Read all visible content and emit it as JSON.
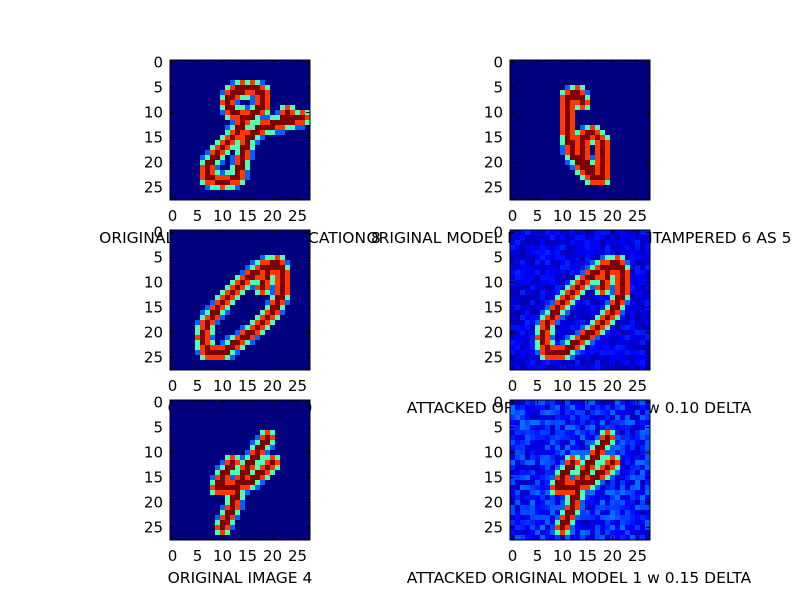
{
  "figure": {
    "background": "#ffffff",
    "colormap": "jet",
    "colormap_stops": [
      "#00007f",
      "#0000ff",
      "#007fff",
      "#00ffff",
      "#7fff7f",
      "#ffff00",
      "#ff7f00",
      "#ff0000",
      "#7f0000"
    ]
  },
  "chart_data": [
    {
      "type": "heatmap",
      "image_size": [
        28,
        28
      ],
      "xticks": [
        0,
        5,
        10,
        15,
        20,
        25
      ],
      "yticks": [
        0,
        5,
        10,
        15,
        20,
        25
      ],
      "xlim": [
        -0.5,
        27.5
      ],
      "ylim": [
        27.5,
        -0.5
      ],
      "grid": false,
      "caption": "ORIGINAL MODEL CLASSIFICATION 8",
      "depicted_digit": "8",
      "strokes": [
        [
          [
            13,
            6
          ],
          [
            16,
            5
          ],
          [
            18,
            6
          ],
          [
            18,
            9
          ],
          [
            15,
            11
          ],
          [
            12,
            10
          ],
          [
            11,
            8
          ],
          [
            12,
            6
          ],
          [
            14,
            5
          ]
        ],
        [
          [
            15,
            11
          ],
          [
            12,
            15
          ],
          [
            9,
            18
          ],
          [
            7,
            21
          ],
          [
            7,
            23
          ],
          [
            10,
            24
          ],
          [
            13,
            23
          ],
          [
            14,
            19
          ],
          [
            15,
            15
          ],
          [
            18,
            13
          ],
          [
            22,
            12
          ],
          [
            26,
            11
          ]
        ],
        [
          [
            22,
            12
          ],
          [
            23,
            10
          ]
        ]
      ],
      "noise": 0
    },
    {
      "type": "heatmap",
      "image_size": [
        28,
        28
      ],
      "xticks": [
        0,
        5,
        10,
        15,
        20,
        25
      ],
      "yticks": [
        0,
        5,
        10,
        15,
        20,
        25
      ],
      "xlim": [
        -0.5,
        27.5
      ],
      "ylim": [
        27.5,
        -0.5
      ],
      "grid": false,
      "caption": "ORIGINAL MODEL MISCLASSIFIED UNTAMPERED 6 AS 5",
      "depicted_digit": "6",
      "strokes": [
        [
          [
            13,
            6
          ],
          [
            11,
            7
          ],
          [
            11,
            10
          ],
          [
            11,
            14
          ],
          [
            12,
            18
          ],
          [
            14,
            21
          ],
          [
            16,
            23
          ],
          [
            18,
            23
          ],
          [
            18,
            20
          ],
          [
            18,
            16
          ],
          [
            16,
            14
          ],
          [
            14,
            15
          ],
          [
            14,
            19
          ],
          [
            16,
            22
          ]
        ],
        [
          [
            13,
            6
          ],
          [
            14,
            8
          ]
        ]
      ],
      "noise": 0
    },
    {
      "type": "heatmap",
      "image_size": [
        28,
        28
      ],
      "xticks": [
        0,
        5,
        10,
        15,
        20,
        25
      ],
      "yticks": [
        0,
        5,
        10,
        15,
        20,
        25
      ],
      "xlim": [
        -0.5,
        27.5
      ],
      "ylim": [
        27.5,
        -0.5
      ],
      "grid": false,
      "caption": "ORIGINAL IMAGE 0",
      "depicted_digit": "0",
      "strokes": [
        [
          [
            21,
            6
          ],
          [
            18,
            7
          ],
          [
            14,
            10
          ],
          [
            10,
            14
          ],
          [
            7,
            18
          ],
          [
            6,
            21
          ],
          [
            7,
            24
          ],
          [
            10,
            24
          ],
          [
            13,
            22
          ],
          [
            17,
            19
          ],
          [
            20,
            16
          ],
          [
            22,
            12
          ],
          [
            22,
            8
          ],
          [
            21,
            6
          ],
          [
            19,
            8
          ],
          [
            18,
            11
          ]
        ]
      ],
      "noise": 0
    },
    {
      "type": "heatmap",
      "image_size": [
        28,
        28
      ],
      "xticks": [
        0,
        5,
        10,
        15,
        20,
        25
      ],
      "yticks": [
        0,
        5,
        10,
        15,
        20,
        25
      ],
      "xlim": [
        -0.5,
        27.5
      ],
      "ylim": [
        27.5,
        -0.5
      ],
      "grid": false,
      "caption": "ATTACKED ORIGINAL MODEL 2 w 0.10 DELTA",
      "depicted_digit": "0",
      "strokes": [
        [
          [
            21,
            6
          ],
          [
            18,
            7
          ],
          [
            14,
            10
          ],
          [
            10,
            14
          ],
          [
            7,
            18
          ],
          [
            6,
            21
          ],
          [
            7,
            24
          ],
          [
            10,
            24
          ],
          [
            13,
            22
          ],
          [
            17,
            19
          ],
          [
            20,
            16
          ],
          [
            22,
            12
          ],
          [
            22,
            8
          ],
          [
            21,
            6
          ],
          [
            19,
            8
          ],
          [
            18,
            11
          ]
        ]
      ],
      "noise": 0.1
    },
    {
      "type": "heatmap",
      "image_size": [
        28,
        28
      ],
      "xticks": [
        0,
        5,
        10,
        15,
        20,
        25
      ],
      "yticks": [
        0,
        5,
        10,
        15,
        20,
        25
      ],
      "xlim": [
        -0.5,
        27.5
      ],
      "ylim": [
        27.5,
        -0.5
      ],
      "grid": false,
      "caption": "ORIGINAL IMAGE 4",
      "depicted_digit": "4",
      "strokes": [
        [
          [
            12,
            12
          ],
          [
            10,
            15
          ],
          [
            9,
            17
          ],
          [
            12,
            17
          ],
          [
            15,
            16
          ],
          [
            18,
            14
          ],
          [
            20,
            12
          ]
        ],
        [
          [
            19,
            7
          ],
          [
            17,
            10
          ],
          [
            15,
            13
          ],
          [
            13,
            17
          ],
          [
            12,
            21
          ],
          [
            10,
            25
          ]
        ]
      ],
      "noise": 0
    },
    {
      "type": "heatmap",
      "image_size": [
        28,
        28
      ],
      "xticks": [
        0,
        5,
        10,
        15,
        20,
        25
      ],
      "yticks": [
        0,
        5,
        10,
        15,
        20,
        25
      ],
      "xlim": [
        -0.5,
        27.5
      ],
      "ylim": [
        27.5,
        -0.5
      ],
      "grid": false,
      "caption": "ATTACKED ORIGINAL MODEL 1 w 0.15 DELTA",
      "depicted_digit": "4",
      "strokes": [
        [
          [
            12,
            12
          ],
          [
            10,
            15
          ],
          [
            9,
            17
          ],
          [
            12,
            17
          ],
          [
            15,
            16
          ],
          [
            18,
            14
          ],
          [
            20,
            12
          ]
        ],
        [
          [
            19,
            7
          ],
          [
            17,
            10
          ],
          [
            15,
            13
          ],
          [
            13,
            17
          ],
          [
            12,
            21
          ],
          [
            10,
            25
          ]
        ]
      ],
      "noise": 0.15
    }
  ]
}
